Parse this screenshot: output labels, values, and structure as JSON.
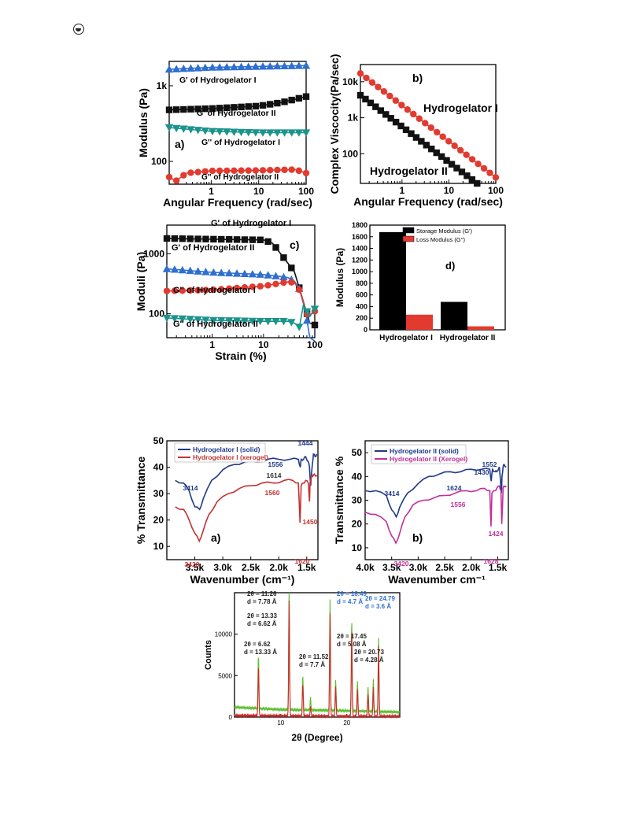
{
  "page_icon": "circle-half-icon",
  "chart_data": [
    {
      "id": "a",
      "type": "line",
      "panel_label": "a)",
      "xlabel": "Angular Frequency (rad/sec)",
      "ylabel": "Modulus (Pa)",
      "xscale": "log",
      "yscale": "log",
      "xlim": [
        0.13,
        100
      ],
      "ylim": [
        50,
        2100
      ],
      "xticks": [
        {
          "v": 1,
          "t": "1"
        },
        {
          "v": 10,
          "t": "10"
        },
        {
          "v": 100,
          "t": "100"
        }
      ],
      "yticks": [
        {
          "v": 100,
          "t": "100"
        },
        {
          "v": 1000,
          "t": "1k"
        }
      ],
      "series": [
        {
          "name": "G' of Hydrogelator I",
          "color": "#2f6fd0",
          "marker": "triangle-up",
          "x": [
            0.13,
            1,
            10,
            100
          ],
          "y": [
            1650,
            1750,
            1800,
            1850
          ]
        },
        {
          "name": "G' of Hydrogelator II",
          "color": "#111111",
          "marker": "square",
          "x": [
            0.13,
            1,
            10,
            30,
            100
          ],
          "y": [
            480,
            500,
            540,
            600,
            720
          ]
        },
        {
          "name": "G'' of Hydrogelator I",
          "color": "#1b948c",
          "marker": "triangle-down",
          "x": [
            0.13,
            1,
            10,
            100
          ],
          "y": [
            280,
            250,
            240,
            240
          ]
        },
        {
          "name": "G'' of Hydrogelator II",
          "color": "#e33a2f",
          "marker": "circle",
          "x": [
            0.13,
            0.18,
            0.3,
            1,
            10,
            60,
            100
          ],
          "y": [
            62,
            55,
            70,
            75,
            76,
            78,
            70
          ]
        }
      ]
    },
    {
      "id": "b",
      "type": "line",
      "panel_label": "b)",
      "xlabel": "Angular Frequency (rad/sec)",
      "ylabel": "Complex Viscocity(Pa/sec)",
      "xscale": "log",
      "yscale": "log",
      "xlim": [
        0.13,
        100
      ],
      "ylim": [
        15,
        30000
      ],
      "xticks": [
        {
          "v": 1,
          "t": "1"
        },
        {
          "v": 10,
          "t": "10"
        },
        {
          "v": 100,
          "t": "100"
        }
      ],
      "yticks": [
        {
          "v": 100,
          "t": "100"
        },
        {
          "v": 1000,
          "t": "1k"
        },
        {
          "v": 10000,
          "t": "10k"
        }
      ],
      "series": [
        {
          "name": "Hydrogelator I",
          "color": "#e33a2f",
          "marker": "circle",
          "x": [
            0.13,
            100
          ],
          "y": [
            17000,
            22
          ]
        },
        {
          "name": "Hydrogelator II",
          "color": "#111111",
          "marker": "square",
          "x": [
            0.13,
            40
          ],
          "y": [
            4200,
            15
          ]
        }
      ]
    },
    {
      "id": "c",
      "type": "line",
      "panel_label": "c)",
      "xlabel": "Strain (%)",
      "ylabel": "Moduli (Pa)",
      "xscale": "log",
      "yscale": "log",
      "xlim": [
        0.13,
        100
      ],
      "ylim": [
        40,
        3000
      ],
      "xticks": [
        {
          "v": 1,
          "t": "1"
        },
        {
          "v": 10,
          "t": "10"
        },
        {
          "v": 100,
          "t": "100"
        }
      ],
      "yticks": [
        {
          "v": 100,
          "t": "100"
        },
        {
          "v": 1000,
          "t": "1000"
        }
      ],
      "series": [
        {
          "name": "G' of Hydrogelator I",
          "color": "#111111",
          "marker": "square",
          "x": [
            0.13,
            1,
            10,
            15,
            25,
            40,
            60,
            80,
            100
          ],
          "y": [
            1800,
            1750,
            1700,
            1500,
            850,
            500,
            160,
            70,
            65
          ]
        },
        {
          "name": "G' of Hydrogelator II",
          "color": "#2f6fd0",
          "marker": "triangle-up",
          "x": [
            0.13,
            1,
            10,
            20,
            30,
            40,
            50,
            60,
            70,
            80,
            100
          ],
          "y": [
            560,
            490,
            450,
            420,
            400,
            350,
            260,
            150,
            80,
            40,
            35
          ]
        },
        {
          "name": "G'' of Hydrogelator I",
          "color": "#e33a2f",
          "marker": "circle",
          "x": [
            0.13,
            1,
            10,
            20,
            30,
            40,
            50,
            60,
            70,
            80,
            100
          ],
          "y": [
            240,
            250,
            290,
            320,
            340,
            330,
            250,
            160,
            100,
            95,
            110
          ]
        },
        {
          "name": "G'' of Hydrogelator II",
          "color": "#1b948c",
          "marker": "triangle-down",
          "x": [
            0.13,
            1,
            10,
            30,
            40,
            50,
            60,
            70,
            80,
            100
          ],
          "y": [
            85,
            78,
            75,
            75,
            70,
            60,
            140,
            110,
            90,
            120
          ]
        }
      ]
    },
    {
      "id": "d",
      "type": "bar",
      "panel_label": "d)",
      "ylabel": "Modulus (Pa)",
      "ylim": [
        0,
        1800
      ],
      "yticks": [
        0,
        200,
        400,
        600,
        800,
        1000,
        1200,
        1400,
        1600,
        1800
      ],
      "categories": [
        "Hydrogelator I",
        "Hydrogelator II"
      ],
      "series": [
        {
          "name": "Storage Modulus (G')",
          "color": "#000000",
          "values": [
            1680,
            480
          ]
        },
        {
          "name": "Loss Modulus (G'')",
          "color": "#e33a2f",
          "values": [
            260,
            60
          ]
        }
      ],
      "legend": "top-left"
    },
    {
      "id": "e",
      "type": "line",
      "panel_label": "a)",
      "xlabel": "Wavenumber (cm⁻¹)",
      "ylabel": "% Transmittance",
      "xlim": [
        4000,
        1300
      ],
      "ylim": [
        5,
        50
      ],
      "xticks": [
        {
          "v": 3500,
          "t": "3.5k"
        },
        {
          "v": 3000,
          "t": "3.0k"
        },
        {
          "v": 2500,
          "t": "2.5k"
        },
        {
          "v": 2000,
          "t": "2.0k"
        },
        {
          "v": 1500,
          "t": "1.5k"
        }
      ],
      "yticks": [
        10,
        20,
        30,
        40,
        50
      ],
      "series": [
        {
          "name": "Hydrogelator I (solid)",
          "color": "#1f3a8a",
          "x": [
            3850,
            3700,
            3600,
            3500,
            3414,
            3350,
            3200,
            3000,
            2800,
            2600,
            2400,
            2200,
            2000,
            1800,
            1650,
            1614,
            1600,
            1556,
            1520,
            1470,
            1450,
            1430,
            1400,
            1380,
            1350,
            1320
          ],
          "y": [
            35,
            34,
            31,
            25,
            24,
            28,
            35,
            39,
            41,
            42,
            42,
            43,
            43,
            43,
            43,
            40,
            43,
            43,
            44,
            42,
            40,
            33,
            41,
            45,
            44,
            45
          ]
        },
        {
          "name": "Hydrogelator I (xerogel)",
          "color": "#c23232",
          "x": [
            3850,
            3700,
            3600,
            3500,
            3420,
            3350,
            3250,
            3100,
            2900,
            2700,
            2500,
            2300,
            2100,
            1900,
            1750,
            1650,
            1620,
            1600,
            1560,
            1520,
            1470,
            1450,
            1440,
            1420,
            1400,
            1380,
            1350,
            1320
          ],
          "y": [
            25,
            24,
            20,
            15,
            12,
            16,
            22,
            27,
            30,
            32,
            33,
            34,
            34,
            35,
            35,
            34,
            19,
            33,
            34,
            35,
            34,
            27,
            34,
            36,
            37,
            37,
            37,
            37
          ]
        }
      ],
      "annotations": [
        {
          "text": "1444",
          "x": 1444,
          "y": 46,
          "color": "#1f3a8a"
        },
        {
          "text": "1556",
          "x": 1556,
          "y": 40,
          "color": "#1f3a8a"
        },
        {
          "text": "1614",
          "x": 1614,
          "y": 36,
          "color": "#333333"
        },
        {
          "text": "3414",
          "x": 3414,
          "y": 30,
          "color": "#1f3a8a"
        },
        {
          "text": "1560",
          "x": 1560,
          "y": 31,
          "color": "#c23232"
        },
        {
          "text": "1450",
          "x": 1450,
          "y": 16,
          "color": "#c23232"
        },
        {
          "text": "1620",
          "x": 1620,
          "y": 8,
          "color": "#c23232"
        },
        {
          "text": "3420",
          "x": 3420,
          "y": 4,
          "color": "#c23232"
        }
      ]
    },
    {
      "id": "f",
      "type": "line",
      "panel_label": "b)",
      "xlabel": "Wavenumber cm⁻¹",
      "ylabel": "Transmittance %",
      "xlim": [
        4000,
        1300
      ],
      "ylim": [
        5,
        55
      ],
      "xticks": [
        {
          "v": 4000,
          "t": "4.0k"
        },
        {
          "v": 3500,
          "t": "3.5k"
        },
        {
          "v": 3000,
          "t": "3.0k"
        },
        {
          "v": 2500,
          "t": "2.5k"
        },
        {
          "v": 2000,
          "t": "2.0k"
        },
        {
          "v": 1500,
          "t": "1.5k"
        }
      ],
      "yticks": [
        10,
        20,
        30,
        40,
        50
      ],
      "series": [
        {
          "name": "Hydrogelator II (solid)",
          "color": "#1f3a8a",
          "x": [
            4000,
            3800,
            3600,
            3500,
            3414,
            3350,
            3200,
            3000,
            2800,
            2600,
            2400,
            2200,
            2000,
            1800,
            1650,
            1624,
            1600,
            1552,
            1520,
            1470,
            1440,
            1430,
            1420,
            1400,
            1380,
            1340
          ],
          "y": [
            34,
            34,
            32,
            26,
            23,
            27,
            33,
            37,
            40,
            41,
            42,
            42,
            43,
            43,
            43,
            38,
            43,
            42,
            42,
            44,
            35,
            33,
            40,
            44,
            45,
            44
          ]
        },
        {
          "name": "Hydrogelator II (Xerogel)",
          "color": "#c0309a",
          "x": [
            4000,
            3800,
            3600,
            3500,
            3420,
            3350,
            3250,
            3100,
            2900,
            2700,
            2500,
            2300,
            2100,
            1900,
            1750,
            1650,
            1628,
            1610,
            1556,
            1520,
            1470,
            1440,
            1424,
            1400,
            1380,
            1340
          ],
          "y": [
            25,
            24,
            21,
            15,
            12,
            16,
            23,
            28,
            30,
            31,
            32,
            33,
            34,
            34,
            35,
            34,
            19,
            33,
            34,
            35,
            36,
            34,
            20,
            35,
            36,
            36
          ]
        }
      ],
      "annotations": [
        {
          "text": "1552",
          "x": 1552,
          "y": 43,
          "color": "#1f3a8a"
        },
        {
          "text": "1430",
          "x": 1430,
          "y": 40,
          "color": "#1f3a8a"
        },
        {
          "text": "1624",
          "x": 1624,
          "y": 34,
          "color": "#1f3a8a"
        },
        {
          "text": "3414",
          "x": 3414,
          "y": 31,
          "color": "#1f3a8a"
        },
        {
          "text": "1556",
          "x": 1556,
          "y": 27,
          "color": "#c0309a"
        },
        {
          "text": "1424",
          "x": 1424,
          "y": 15,
          "color": "#c0309a"
        },
        {
          "text": "1628",
          "x": 1628,
          "y": 4,
          "color": "#c0309a"
        },
        {
          "text": "3420",
          "x": 3420,
          "y": 3,
          "color": "#c0309a"
        }
      ]
    },
    {
      "id": "g",
      "type": "line",
      "xlabel": "2θ (Degree)",
      "ylabel": "Counts",
      "xlim": [
        3,
        28
      ],
      "ylim": [
        0,
        15000
      ],
      "xticks": [
        {
          "v": 10,
          "t": "10"
        },
        {
          "v": 20,
          "t": "20"
        }
      ],
      "yticks": [
        {
          "v": 0,
          "t": "0"
        },
        {
          "v": 5000,
          "t": "5000"
        },
        {
          "v": 10000,
          "t": "10000"
        }
      ],
      "series": [
        {
          "name": "",
          "color": "#5cc02e",
          "baseline": [
            [
              3,
              1200
            ],
            [
              10,
              900
            ],
            [
              18,
              800
            ],
            [
              28,
              600
            ]
          ],
          "peaks": [
            [
              6.62,
              6500
            ],
            [
              11.26,
              15000
            ],
            [
              13.33,
              4200
            ],
            [
              14.5,
              1500
            ],
            [
              17.45,
              13500
            ],
            [
              18.3,
              3800
            ],
            [
              20.73,
              11000
            ],
            [
              21.6,
              3500
            ],
            [
              23.2,
              3000
            ],
            [
              24.0,
              3800
            ],
            [
              24.79,
              9000
            ]
          ]
        },
        {
          "name": "",
          "color": "#cc2b2b",
          "baseline": [
            [
              3,
              200
            ],
            [
              10,
              150
            ],
            [
              18,
              120
            ],
            [
              28,
              100
            ]
          ],
          "peaks": [
            [
              6.62,
              6000
            ],
            [
              11.26,
              14000
            ],
            [
              13.33,
              4000
            ],
            [
              14.5,
              1200
            ],
            [
              17.45,
              12500
            ],
            [
              18.3,
              3600
            ],
            [
              20.73,
              10500
            ],
            [
              21.6,
              3200
            ],
            [
              23.2,
              2700
            ],
            [
              24.0,
              3500
            ],
            [
              24.79,
              8500
            ]
          ]
        }
      ],
      "annotations": [
        {
          "text": "2θ = 11.26",
          "sub": "d = 7.78 Å",
          "color": "#222222"
        },
        {
          "text": "2θ = 13.33",
          "sub": "d = 6.62 Å",
          "color": "#222222"
        },
        {
          "text": "2θ = 6.62",
          "sub": "d = 13.33 Å",
          "color": "#222222"
        },
        {
          "text": "2θ = 11.52",
          "sub": "d = 7.7 Å",
          "color": "#222222"
        },
        {
          "text": "2θ = 18.49",
          "sub": "d = 4.7 Å",
          "color": "#2f6fd0"
        },
        {
          "text": "2θ = 24.79",
          "sub": "d = 3.6 Å",
          "color": "#2f6fd0"
        },
        {
          "text": "2θ = 17.45",
          "sub": "d = 5.08 Å",
          "color": "#222222"
        },
        {
          "text": "2θ = 20.73",
          "sub": "d = 4.28 Å",
          "color": "#222222"
        }
      ]
    }
  ]
}
